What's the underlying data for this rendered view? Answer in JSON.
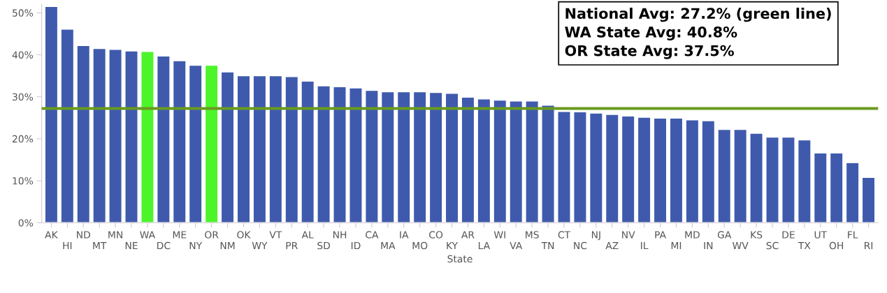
{
  "chart_data": {
    "type": "bar",
    "xlabel": "State",
    "categories": [
      "AK",
      "HI",
      "ND",
      "MT",
      "MN",
      "NE",
      "WA",
      "DC",
      "ME",
      "NY",
      "OR",
      "NM",
      "OK",
      "WY",
      "VT",
      "PR",
      "AL",
      "SD",
      "NH",
      "ID",
      "CA",
      "MA",
      "IA",
      "MO",
      "CO",
      "KY",
      "AR",
      "LA",
      "WI",
      "VA",
      "MS",
      "TN",
      "CT",
      "NC",
      "NJ",
      "AZ",
      "NV",
      "IL",
      "PA",
      "MI",
      "MD",
      "IN",
      "GA",
      "WV",
      "KS",
      "SC",
      "DE",
      "TX",
      "UT",
      "OH",
      "FL",
      "RI"
    ],
    "values": [
      51.5,
      46.1,
      42.2,
      41.5,
      41.3,
      40.9,
      40.8,
      39.7,
      38.6,
      37.5,
      37.5,
      35.9,
      35.0,
      35.0,
      35.0,
      34.8,
      33.7,
      32.6,
      32.4,
      32.1,
      31.5,
      31.2,
      31.2,
      31.2,
      31.0,
      30.8,
      29.9,
      29.5,
      29.2,
      29.0,
      29.0,
      28.0,
      26.5,
      26.4,
      26.1,
      25.8,
      25.4,
      25.1,
      24.9,
      24.9,
      24.5,
      24.3,
      22.2,
      22.2,
      21.3,
      20.4,
      20.4,
      19.7,
      16.6,
      16.6,
      14.3,
      10.8
    ],
    "colors": [
      "#3f5aad",
      "#3f5aad",
      "#3f5aad",
      "#3f5aad",
      "#3f5aad",
      "#3f5aad",
      "#4cf52a",
      "#3f5aad",
      "#3f5aad",
      "#3f5aad",
      "#4cf52a",
      "#3f5aad",
      "#3f5aad",
      "#3f5aad",
      "#3f5aad",
      "#3f5aad",
      "#3f5aad",
      "#3f5aad",
      "#3f5aad",
      "#3f5aad",
      "#3f5aad",
      "#3f5aad",
      "#3f5aad",
      "#3f5aad",
      "#3f5aad",
      "#3f5aad",
      "#3f5aad",
      "#3f5aad",
      "#3f5aad",
      "#3f5aad",
      "#3f5aad",
      "#3f5aad",
      "#3f5aad",
      "#3f5aad",
      "#3f5aad",
      "#3f5aad",
      "#3f5aad",
      "#3f5aad",
      "#3f5aad",
      "#3f5aad",
      "#3f5aad",
      "#3f5aad",
      "#3f5aad",
      "#3f5aad",
      "#3f5aad",
      "#3f5aad",
      "#3f5aad",
      "#3f5aad",
      "#3f5aad",
      "#3f5aad",
      "#3f5aad",
      "#3f5aad"
    ],
    "ylim": [
      0,
      52
    ],
    "yticks": [
      {
        "value": 0,
        "label": "0%"
      },
      {
        "value": 10,
        "label": "10%"
      },
      {
        "value": 20,
        "label": "20%"
      },
      {
        "value": 30,
        "label": "30%"
      },
      {
        "value": 40,
        "label": "40%"
      },
      {
        "value": 50,
        "label": "50%"
      }
    ],
    "ref_lines": [
      {
        "axis": "y",
        "value": 27.2,
        "color": "#6a9a1f"
      }
    ],
    "annotations": [
      "National Avg: 27.2% (green line)",
      "WA State Avg: 40.8%",
      "OR State Avg: 37.5%"
    ],
    "grid": false
  }
}
